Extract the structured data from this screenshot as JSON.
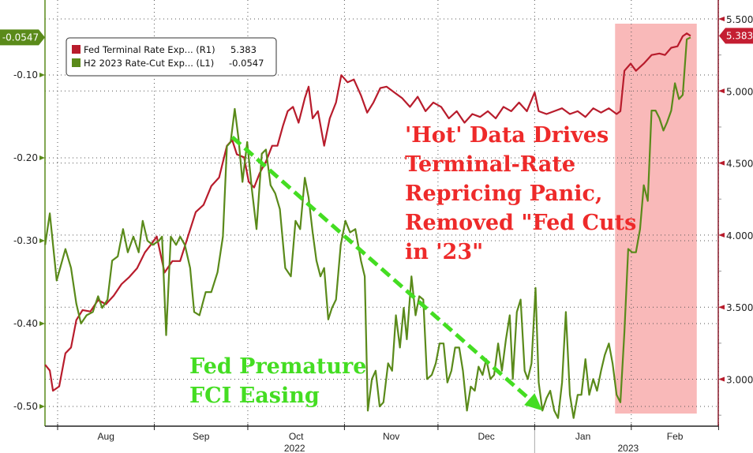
{
  "chart_data": {
    "type": "line",
    "x_unit": "days since 2022-08-01",
    "x_months": [
      {
        "label": "Aug",
        "start": 0
      },
      {
        "label": "Sep",
        "start": 31
      },
      {
        "label": "Oct",
        "start": 61
      },
      {
        "label": "Nov",
        "start": 92
      },
      {
        "label": "Dec",
        "start": 122
      },
      {
        "label": "Jan",
        "start": 153
      },
      {
        "label": "Feb",
        "start": 184
      }
    ],
    "x_end_tick": 212,
    "years": [
      {
        "label": "2022",
        "center": 76
      },
      {
        "label": "2023",
        "center": 183
      }
    ],
    "year_divider": 153,
    "left_axis": {
      "ticks": [
        -0.1,
        -0.2,
        -0.3,
        -0.4,
        -0.5
      ],
      "labels": [
        "-0.10",
        "-0.20",
        "-0.30",
        "-0.40",
        "-0.50"
      ],
      "last_value_label": "-0.0547"
    },
    "right_axis": {
      "ticks": [
        5.5,
        5.0,
        4.5,
        4.0,
        3.5,
        3.0
      ],
      "labels": [
        "5.500",
        "5.000",
        "4.500",
        "4.000",
        "3.500",
        "3.000"
      ],
      "last_value_label": "5.383"
    },
    "legend": {
      "position": "top-left",
      "items": [
        {
          "name": "Fed Terminal Rate Exp... (R1)",
          "value": "5.383",
          "color": "#b81c2c"
        },
        {
          "name": "H2 2023 Rate-Cut Exp... (L1)",
          "value": "-0.0547",
          "color": "#5a8a1a"
        }
      ]
    },
    "series": [
      {
        "name": "Fed Terminal Rate Exp...",
        "axis": "right",
        "color": "#b81c2c",
        "x": [
          -4,
          -2.5,
          -1.5,
          0.5,
          2.5,
          4.3,
          6,
          8,
          10.5,
          13,
          15.5,
          18,
          20.5,
          23,
          25.5,
          28,
          29.8,
          31.8,
          34.3,
          36.8,
          39.3,
          41.8,
          44.3,
          46.8,
          49.3,
          51.8,
          54.3,
          56,
          57.5,
          59.8,
          61.3,
          63,
          64.8,
          66.8,
          68.8,
          70.5,
          72.3,
          73.8,
          75.5,
          77.3,
          79.3,
          80.5,
          81.8,
          83.5,
          85.5,
          87.3,
          89.3,
          91,
          93,
          95,
          97.3,
          99.3,
          101.3,
          103.5,
          105.5,
          108,
          110.5,
          113,
          115.5,
          118,
          120.5,
          123,
          125.5,
          128,
          130.5,
          133,
          135.5,
          138,
          140.5,
          143,
          145.5,
          148,
          150.5,
          153,
          154.3,
          156.8,
          159.3,
          161.8,
          164.3,
          166.8,
          169.3,
          171.8,
          174.3,
          176.8,
          179.3,
          180.5,
          181.8,
          183.8,
          185.5,
          188,
          190.5,
          193,
          194.8,
          196.8,
          198.8,
          200.5,
          201.8,
          203
        ],
        "values": [
          3.1,
          3.06,
          2.92,
          2.95,
          3.18,
          3.22,
          3.41,
          3.48,
          3.47,
          3.55,
          3.52,
          3.58,
          3.66,
          3.71,
          3.77,
          3.88,
          3.93,
          3.99,
          3.74,
          3.82,
          3.82,
          3.99,
          4.16,
          4.21,
          4.34,
          4.4,
          4.62,
          4.66,
          4.56,
          4.54,
          4.37,
          4.33,
          4.43,
          4.51,
          4.62,
          4.62,
          4.76,
          4.86,
          4.89,
          4.78,
          4.95,
          5.03,
          4.81,
          4.86,
          4.62,
          4.81,
          4.92,
          5.11,
          5.06,
          5.08,
          4.97,
          4.85,
          4.92,
          5.02,
          5.03,
          4.99,
          4.95,
          4.89,
          4.96,
          4.86,
          4.92,
          4.89,
          4.81,
          4.86,
          4.78,
          4.84,
          4.82,
          4.86,
          4.81,
          4.89,
          4.86,
          4.92,
          4.86,
          4.99,
          4.86,
          4.84,
          4.86,
          4.88,
          4.84,
          4.86,
          4.82,
          4.88,
          4.85,
          4.88,
          4.84,
          4.86,
          5.14,
          5.19,
          5.14,
          5.19,
          5.25,
          5.26,
          5.25,
          5.3,
          5.31,
          5.38,
          5.4,
          5.383
        ]
      },
      {
        "name": "H2 2023 Rate-Cut Exp...",
        "axis": "left",
        "color": "#5a8a1a",
        "x": [
          -4,
          -2.5,
          -0.3,
          2.5,
          4.3,
          6,
          7.5,
          9.3,
          11.3,
          13,
          14.3,
          16,
          17.5,
          19.3,
          21,
          22.5,
          24.3,
          26,
          27.3,
          28.8,
          30.5,
          32.5,
          33.5,
          34.8,
          36.3,
          38,
          39.3,
          40.8,
          42.5,
          43.8,
          45.5,
          47.5,
          49.3,
          51.3,
          53,
          54.3,
          55.5,
          56.8,
          58,
          59.3,
          60.8,
          62.3,
          63.8,
          65.5,
          66.8,
          68.3,
          69.8,
          71.3,
          73,
          74.8,
          76.3,
          77.8,
          79.3,
          80.5,
          81.8,
          83,
          84.3,
          85.5,
          86.8,
          88,
          89.3,
          90.8,
          92.3,
          93.8,
          95.5,
          97.3,
          98.5,
          99.5,
          100.8,
          102,
          103.3,
          104.5,
          106,
          107.3,
          108.5,
          109.8,
          111,
          112,
          113.5,
          114.8,
          116,
          117.3,
          118.5,
          120,
          121.3,
          122.5,
          123.8,
          125,
          126.3,
          127.5,
          128.8,
          130,
          131.3,
          132.5,
          133.8,
          135,
          136.3,
          137.5,
          138.8,
          140,
          141.3,
          142.5,
          143.8,
          145,
          146,
          147.3,
          148.5,
          149.8,
          150.8,
          152,
          153.3,
          154.3,
          155.5,
          156.8,
          158,
          159.3,
          160.5,
          161.8,
          163,
          164.3,
          165.5,
          166.8,
          168,
          169.3,
          170.5,
          171.8,
          173,
          174.3,
          175.5,
          176.8,
          178,
          179.3,
          180.5,
          181.8,
          183,
          184.3,
          185.5,
          186.8,
          188,
          189.3,
          190.5,
          191.8,
          193,
          194.3,
          195.5,
          196.8,
          198,
          199.3,
          200.5,
          201.8,
          203
        ],
        "values": [
          -0.305,
          -0.267,
          -0.348,
          -0.31,
          -0.333,
          -0.376,
          -0.4,
          -0.39,
          -0.386,
          -0.367,
          -0.381,
          -0.371,
          -0.324,
          -0.319,
          -0.286,
          -0.314,
          -0.295,
          -0.314,
          -0.276,
          -0.3,
          -0.305,
          -0.3,
          -0.295,
          -0.414,
          -0.295,
          -0.305,
          -0.295,
          -0.305,
          -0.333,
          -0.386,
          -0.39,
          -0.362,
          -0.362,
          -0.338,
          -0.295,
          -0.186,
          -0.181,
          -0.141,
          -0.176,
          -0.229,
          -0.181,
          -0.238,
          -0.286,
          -0.195,
          -0.19,
          -0.233,
          -0.243,
          -0.262,
          -0.333,
          -0.343,
          -0.276,
          -0.286,
          -0.224,
          -0.248,
          -0.29,
          -0.324,
          -0.343,
          -0.333,
          -0.395,
          -0.381,
          -0.371,
          -0.305,
          -0.276,
          -0.29,
          -0.286,
          -0.324,
          -0.343,
          -0.505,
          -0.467,
          -0.457,
          -0.5,
          -0.495,
          -0.448,
          -0.457,
          -0.39,
          -0.429,
          -0.381,
          -0.419,
          -0.343,
          -0.39,
          -0.367,
          -0.371,
          -0.467,
          -0.462,
          -0.448,
          -0.424,
          -0.424,
          -0.471,
          -0.457,
          -0.429,
          -0.429,
          -0.457,
          -0.505,
          -0.476,
          -0.481,
          -0.452,
          -0.462,
          -0.443,
          -0.467,
          -0.462,
          -0.424,
          -0.457,
          -0.419,
          -0.39,
          -0.467,
          -0.386,
          -0.371,
          -0.457,
          -0.467,
          -0.448,
          -0.357,
          -0.471,
          -0.505,
          -0.49,
          -0.481,
          -0.505,
          -0.514,
          -0.471,
          -0.386,
          -0.486,
          -0.514,
          -0.486,
          -0.486,
          -0.443,
          -0.486,
          -0.467,
          -0.481,
          -0.457,
          -0.438,
          -0.424,
          -0.448,
          -0.486,
          -0.495,
          -0.41,
          -0.31,
          -0.314,
          -0.314,
          -0.286,
          -0.233,
          -0.252,
          -0.143,
          -0.143,
          -0.152,
          -0.167,
          -0.157,
          -0.143,
          -0.11,
          -0.129,
          -0.124,
          -0.057,
          -0.0547
        ]
      }
    ],
    "shaded_region": {
      "x_start": 178.8,
      "x_end": 205,
      "color": "#f9b9b9"
    },
    "annotations": {
      "red_lines": [
        "'Hot' Data Drives",
        "Terminal-Rate",
        "Repricing Panic,",
        "Removed \"Fed Cuts",
        "in '23\""
      ],
      "red_color": "#ee2a2a",
      "green_lines": [
        "Fed Premature",
        "FCI Easing"
      ],
      "green_color": "#44dd22",
      "arrow": {
        "from": {
          "x": 56,
          "value": -0.175
        },
        "to": {
          "x": 155.5,
          "value": -0.505
        }
      }
    }
  }
}
